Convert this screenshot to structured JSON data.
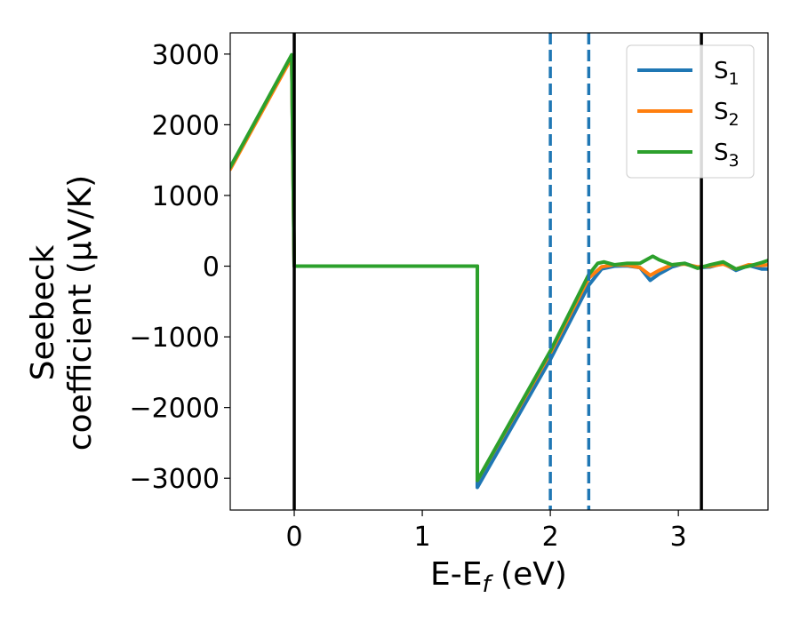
{
  "chart_data": {
    "type": "line",
    "xlabel": "E-E_f (eV)",
    "ylabel": [
      "Seebeck",
      "coefficient  (μV/K)"
    ],
    "xlim": [
      -0.5,
      3.7
    ],
    "ylim": [
      -3450,
      3300
    ],
    "xticks": [
      0,
      1,
      2,
      3
    ],
    "yticks": [
      3000,
      2000,
      1000,
      0,
      -1000,
      -2000,
      -3000
    ],
    "ytick_labels": [
      "3000",
      "2000",
      "1000",
      "0",
      "−1000",
      "−2000",
      "−3000"
    ],
    "grid": false,
    "legend_position": "top-right",
    "vlines": [
      {
        "x": 0,
        "style": "solid",
        "color": "#000000"
      },
      {
        "x": 2.0,
        "style": "dashed",
        "color": "#1f77b4"
      },
      {
        "x": 2.3,
        "style": "dashed",
        "color": "#1f77b4"
      },
      {
        "x": 3.18,
        "style": "solid",
        "color": "#000000"
      }
    ],
    "series": [
      {
        "name": "S_1",
        "color": "#1f77b4",
        "points": [
          [
            -0.5,
            1400
          ],
          [
            -0.02,
            2960
          ],
          [
            0.0,
            0
          ],
          [
            1.43,
            0
          ],
          [
            1.43,
            -3130
          ],
          [
            2.0,
            -1320
          ],
          [
            2.3,
            -270
          ],
          [
            2.4,
            -40
          ],
          [
            2.5,
            0
          ],
          [
            2.6,
            5
          ],
          [
            2.7,
            -20
          ],
          [
            2.78,
            -200
          ],
          [
            2.85,
            -110
          ],
          [
            2.95,
            -10
          ],
          [
            3.05,
            40
          ],
          [
            3.15,
            -20
          ],
          [
            3.25,
            -10
          ],
          [
            3.35,
            40
          ],
          [
            3.45,
            -60
          ],
          [
            3.55,
            10
          ],
          [
            3.65,
            -40
          ],
          [
            3.7,
            -40
          ]
        ]
      },
      {
        "name": "S_2",
        "color": "#ff7f0e",
        "points": [
          [
            -0.5,
            1370
          ],
          [
            -0.02,
            2950
          ],
          [
            0.0,
            0
          ],
          [
            1.43,
            0
          ],
          [
            1.43,
            -3030
          ],
          [
            2.0,
            -1230
          ],
          [
            2.3,
            -170
          ],
          [
            2.4,
            -10
          ],
          [
            2.5,
            20
          ],
          [
            2.6,
            15
          ],
          [
            2.7,
            -20
          ],
          [
            2.78,
            -130
          ],
          [
            2.85,
            -60
          ],
          [
            2.95,
            20
          ],
          [
            3.05,
            30
          ],
          [
            3.15,
            -10
          ],
          [
            3.25,
            0
          ],
          [
            3.35,
            30
          ],
          [
            3.45,
            -40
          ],
          [
            3.55,
            20
          ],
          [
            3.65,
            10
          ],
          [
            3.7,
            20
          ]
        ]
      },
      {
        "name": "S_3",
        "color": "#2ca02c",
        "points": [
          [
            -0.5,
            1400
          ],
          [
            -0.02,
            2990
          ],
          [
            0.0,
            0
          ],
          [
            1.43,
            0
          ],
          [
            1.43,
            -3030
          ],
          [
            2.0,
            -1200
          ],
          [
            2.3,
            -120
          ],
          [
            2.37,
            40
          ],
          [
            2.42,
            60
          ],
          [
            2.5,
            20
          ],
          [
            2.6,
            40
          ],
          [
            2.7,
            40
          ],
          [
            2.8,
            140
          ],
          [
            2.85,
            90
          ],
          [
            2.95,
            20
          ],
          [
            3.05,
            40
          ],
          [
            3.15,
            -30
          ],
          [
            3.25,
            20
          ],
          [
            3.35,
            60
          ],
          [
            3.45,
            -40
          ],
          [
            3.55,
            0
          ],
          [
            3.65,
            50
          ],
          [
            3.7,
            80
          ]
        ]
      }
    ]
  }
}
